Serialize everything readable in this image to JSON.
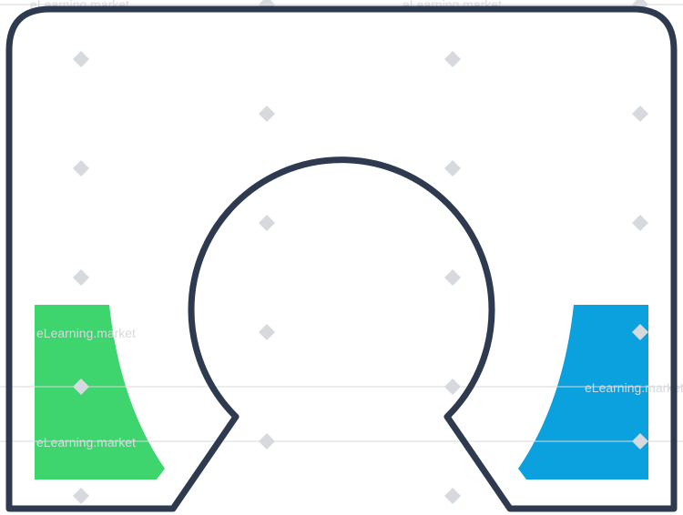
{
  "colors": {
    "outline": "#2e3a4f",
    "left_fill": "#3ed46e",
    "right_fill": "#0aa1de",
    "watermark": "#d6d9dd",
    "background": "#ffffff"
  },
  "watermark": {
    "text": "eLearning.market",
    "mark_glyph": "e"
  }
}
